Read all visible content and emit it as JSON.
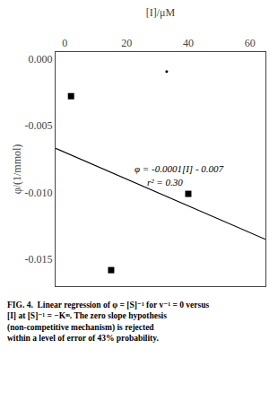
{
  "chart_data": {
    "type": "scatter",
    "xlabel": "[I]/μM",
    "ylabel": "φ/(1/mmol)",
    "xlim": [
      -3,
      65
    ],
    "ylim": [
      -0.017,
      0.0005
    ],
    "xticks": [
      0,
      20,
      40,
      60
    ],
    "yticks": [
      {
        "value": 0.0,
        "label": "0.000"
      },
      {
        "value": -0.005,
        "label": "-0.005"
      },
      {
        "value": -0.01,
        "label": "-0.010"
      },
      {
        "value": -0.015,
        "label": "-0.015"
      }
    ],
    "grid": false,
    "series": [
      {
        "type": "line",
        "x": [
          -3,
          65
        ],
        "values": [
          -0.0067,
          -0.0135
        ],
        "color": "black",
        "line_style": "solid"
      },
      {
        "type": "scatter",
        "x": [
          2,
          40,
          15
        ],
        "values": [
          -0.0028,
          -0.0101,
          -0.0158
        ],
        "color": "black",
        "marker": "square"
      },
      {
        "type": "scatter",
        "x": [
          33
        ],
        "values": [
          -0.00095
        ],
        "color": "black",
        "marker": "dot"
      }
    ],
    "annotations": [
      {
        "text": "φ = -0.0001[I] - 0.007",
        "x": 22,
        "y": -0.0082
      },
      {
        "text": "r² = 0.30",
        "x": 26,
        "y": -0.0092
      }
    ],
    "caption": [
      "FIG. 4.  Linear regression of φ = [S]⁻¹ for v⁻¹ = 0 versus",
      "[I] at [S]⁻¹ = −Kᵐ. The zero slope hypothesis",
      "(non-competitive mechanism) is rejected",
      "within a level of error of 43% probability."
    ]
  }
}
